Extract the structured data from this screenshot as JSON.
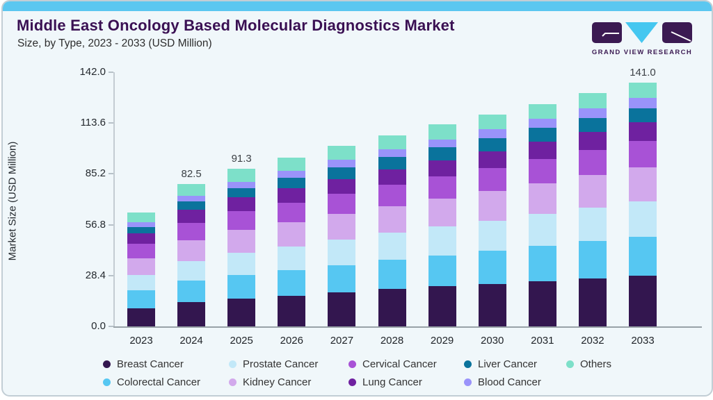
{
  "header": {
    "title": "Middle East Oncology Based Molecular Diagnostics Market",
    "subtitle": "Size, by Type, 2023 - 2033 (USD Million)",
    "logo": {
      "text": "GRAND VIEW RESEARCH"
    }
  },
  "chart_data": {
    "type": "bar",
    "stacked": true,
    "title": "Middle East Oncology Based Molecular Diagnostics Market Size, by Type, 2023 - 2033 (USD Million)",
    "xlabel": "",
    "ylabel": "Market Size (USD Million)",
    "ylim": [
      0,
      142
    ],
    "ytick_values": [
      0,
      28.4,
      56.8,
      85.2,
      113.6,
      142
    ],
    "ytick_labels": [
      "0.0",
      "28.4",
      "56.8",
      "85.2",
      "113.6",
      "142.0"
    ],
    "grid": false,
    "legend_position": "bottom",
    "categories": [
      "2023",
      "2024",
      "2025",
      "2026",
      "2027",
      "2028",
      "2029",
      "2030",
      "2031",
      "2032",
      "2033"
    ],
    "bar_total_labels": {
      "2024": "82.5",
      "2025": "91.3",
      "2033": "141.0"
    },
    "series": [
      {
        "name": "Breast Cancer",
        "color": "#33164f",
        "values": [
          10.6,
          13.9,
          15.9,
          17.7,
          19.5,
          21.5,
          23.1,
          24.6,
          26.1,
          27.8,
          29.2
        ]
      },
      {
        "name": "Colorectal Cancer",
        "color": "#56c7f2",
        "values": [
          10.1,
          12.6,
          14.0,
          14.9,
          16.0,
          17.0,
          18.0,
          19.1,
          20.3,
          21.5,
          22.7
        ]
      },
      {
        "name": "Prostate Cancer",
        "color": "#c2e8f8",
        "values": [
          9.0,
          11.3,
          12.6,
          13.6,
          14.7,
          15.7,
          16.6,
          17.5,
          18.5,
          19.5,
          20.5
        ]
      },
      {
        "name": "Kidney Cancer",
        "color": "#d2a9ec",
        "values": [
          9.8,
          12.1,
          13.2,
          14.0,
          14.7,
          15.4,
          16.2,
          17.0,
          17.9,
          18.8,
          19.7
        ]
      },
      {
        "name": "Cervical Cancer",
        "color": "#a852d6",
        "values": [
          8.2,
          10.0,
          10.9,
          11.4,
          12.0,
          12.5,
          13.0,
          13.5,
          14.1,
          14.6,
          15.1
        ]
      },
      {
        "name": "Lung Cancer",
        "color": "#6f21a0",
        "values": [
          6.1,
          7.4,
          7.9,
          8.2,
          8.4,
          8.6,
          9.1,
          9.5,
          9.9,
          10.3,
          10.8
        ]
      },
      {
        "name": "Liver Cancer",
        "color": "#0a739c",
        "values": [
          3.7,
          4.8,
          5.5,
          6.1,
          6.8,
          7.4,
          7.6,
          7.8,
          7.9,
          8.0,
          8.1
        ]
      },
      {
        "name": "Blood Cancer",
        "color": "#9a93fa",
        "values": [
          2.8,
          3.5,
          3.7,
          3.9,
          4.1,
          4.2,
          4.6,
          4.9,
          5.3,
          5.7,
          6.1
        ]
      },
      {
        "name": "Others",
        "color": "#7de0c9",
        "values": [
          5.7,
          6.9,
          7.6,
          7.7,
          8.1,
          8.3,
          8.5,
          8.6,
          8.7,
          8.7,
          8.8
        ]
      }
    ],
    "legend_rows": [
      [
        "Breast Cancer",
        "Prostate Cancer",
        "Cervical Cancer",
        "Liver Cancer",
        "Others"
      ],
      [
        "Colorectal Cancer",
        "Kidney Cancer",
        "Lung Cancer",
        "Blood Cancer"
      ]
    ]
  },
  "colors": {
    "accent_strip": "#5bc7f0",
    "card_background": "#f0f7fa",
    "card_border": "#c2ced5",
    "title_text": "#3a1053",
    "body_text": "#2d2d2d",
    "axis_line": "#c3ccd2",
    "baseline": "#98a1a7",
    "logo_purple": "#3b1a52",
    "logo_cyan": "#45c7f0"
  }
}
